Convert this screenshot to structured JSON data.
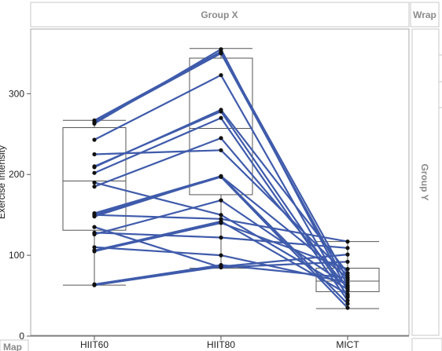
{
  "panel": {
    "group_x_label": "Group X",
    "wrap_label": "Wrap",
    "group_y_label": "Group Y",
    "map_label": "Map"
  },
  "chart_data": {
    "type": "box-parallel",
    "ylabel": "Exercise Intensity",
    "categories": [
      "HIIT60",
      "HIIT80",
      "MICT"
    ],
    "ylim": [
      0,
      380
    ],
    "yticks": [
      0,
      100,
      200,
      300
    ],
    "boxes": [
      {
        "category": "HIIT60",
        "min": 63,
        "q1": 131,
        "median": 192,
        "q3": 258,
        "max": 267
      },
      {
        "category": "HIIT80",
        "min": 84,
        "q1": 175,
        "median": 257,
        "q3": 344,
        "max": 356
      },
      {
        "category": "MICT",
        "min": 34,
        "q1": 55,
        "median": 68,
        "q3": 84,
        "max": 117
      }
    ],
    "subjects": [
      [
        267,
        352,
        70
      ],
      [
        263,
        355,
        56
      ],
      [
        265,
        350,
        63
      ],
      [
        243,
        323,
        48
      ],
      [
        209,
        280,
        78
      ],
      [
        210,
        278,
        50
      ],
      [
        202,
        270,
        44
      ],
      [
        185,
        245,
        60
      ],
      [
        152,
        198,
        72
      ],
      [
        148,
        198,
        40
      ],
      [
        150,
        197,
        35
      ],
      [
        126,
        168,
        62
      ],
      [
        106,
        142,
        52
      ],
      [
        105,
        140,
        83
      ],
      [
        150,
        145,
        117
      ],
      [
        128,
        122,
        109
      ],
      [
        64,
        88,
        72
      ],
      [
        63,
        86,
        101
      ],
      [
        135,
        85,
        92
      ],
      [
        110,
        100,
        66
      ],
      [
        190,
        150,
        58
      ],
      [
        225,
        230,
        75
      ]
    ],
    "colors": {
      "line": "#3f5bab",
      "point": "#111111",
      "box": "#555555"
    },
    "grid": false,
    "legend": "none"
  }
}
